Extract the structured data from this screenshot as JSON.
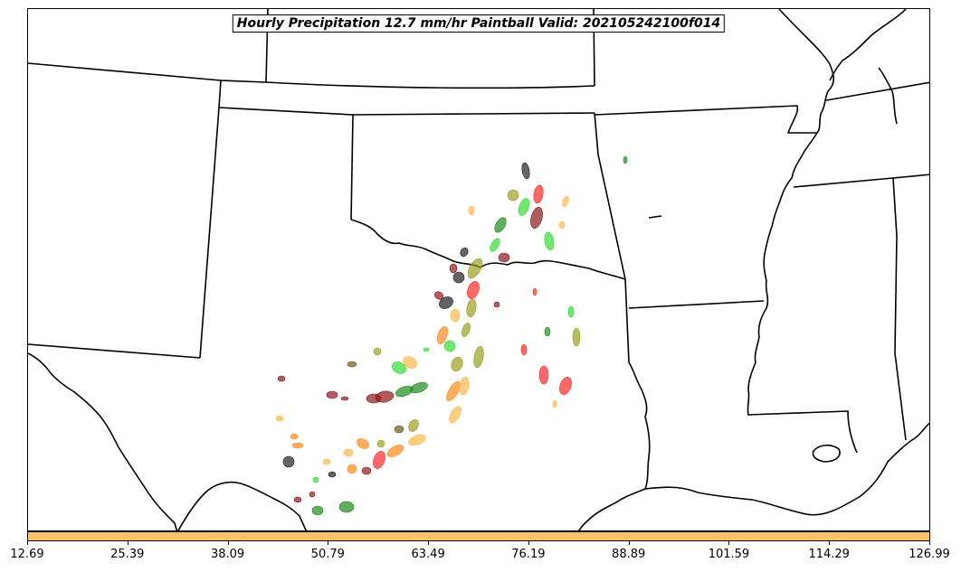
{
  "title": "Hourly Precipitation 12.7 mm/hr Paintball Valid: 202105242100f014",
  "colorbar": {
    "color": "#ffc266",
    "ticks": [
      "12.69",
      "25.39",
      "38.09",
      "50.79",
      "63.49",
      "76.19",
      "88.89",
      "101.59",
      "114.29",
      "126.99"
    ]
  },
  "colors": {
    "boundary": "#000000",
    "members": [
      "#222222",
      "#8b1a1a",
      "#ff2a2a",
      "#ff8c1a",
      "#ffb84d",
      "#9aa020",
      "#1e8c1e",
      "#33dd33",
      "#6b5a1a"
    ]
  }
}
